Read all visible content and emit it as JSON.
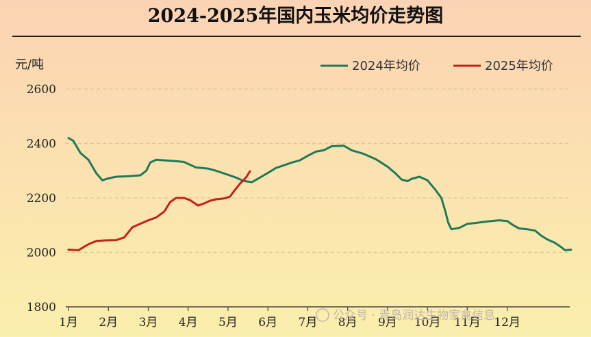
{
  "chart_data": {
    "type": "line",
    "title": "2024-2025年国内玉米均价走势图",
    "ylabel": "元/吨",
    "xlabel": "",
    "ylim": [
      1800,
      2600
    ],
    "yticks": [
      1800,
      2000,
      2200,
      2400,
      2600
    ],
    "xlim": [
      0,
      12.5
    ],
    "month_labels": [
      "1月",
      "2月",
      "3月",
      "4月",
      "5月",
      "6月",
      "7月",
      "8月",
      "9月",
      "10月",
      "11月",
      "12月"
    ],
    "grid": "horizontal dashed",
    "legend_position": "top-right",
    "series": [
      {
        "name": "2024年均价",
        "color": "#1e7a55",
        "points": [
          [
            0.0,
            2420
          ],
          [
            0.12,
            2410
          ],
          [
            0.3,
            2365
          ],
          [
            0.5,
            2340
          ],
          [
            0.7,
            2290
          ],
          [
            0.85,
            2265
          ],
          [
            1.0,
            2272
          ],
          [
            1.2,
            2278
          ],
          [
            1.5,
            2280
          ],
          [
            1.8,
            2283
          ],
          [
            1.95,
            2300
          ],
          [
            2.05,
            2330
          ],
          [
            2.2,
            2340
          ],
          [
            2.5,
            2337
          ],
          [
            2.7,
            2335
          ],
          [
            2.9,
            2332
          ],
          [
            3.0,
            2325
          ],
          [
            3.2,
            2312
          ],
          [
            3.5,
            2308
          ],
          [
            3.7,
            2300
          ],
          [
            4.0,
            2285
          ],
          [
            4.2,
            2275
          ],
          [
            4.4,
            2262
          ],
          [
            4.6,
            2258
          ],
          [
            4.8,
            2275
          ],
          [
            5.0,
            2292
          ],
          [
            5.2,
            2310
          ],
          [
            5.4,
            2320
          ],
          [
            5.6,
            2330
          ],
          [
            5.8,
            2338
          ],
          [
            6.0,
            2355
          ],
          [
            6.2,
            2370
          ],
          [
            6.4,
            2375
          ],
          [
            6.6,
            2390
          ],
          [
            6.9,
            2392
          ],
          [
            7.1,
            2375
          ],
          [
            7.4,
            2362
          ],
          [
            7.7,
            2343
          ],
          [
            8.0,
            2315
          ],
          [
            8.2,
            2290
          ],
          [
            8.35,
            2268
          ],
          [
            8.5,
            2262
          ],
          [
            8.6,
            2270
          ],
          [
            8.8,
            2278
          ],
          [
            9.0,
            2265
          ],
          [
            9.2,
            2230
          ],
          [
            9.35,
            2200
          ],
          [
            9.45,
            2150
          ],
          [
            9.52,
            2110
          ],
          [
            9.6,
            2085
          ],
          [
            9.8,
            2090
          ],
          [
            10.0,
            2105
          ],
          [
            10.2,
            2108
          ],
          [
            10.4,
            2112
          ],
          [
            10.6,
            2115
          ],
          [
            10.8,
            2118
          ],
          [
            11.0,
            2115
          ],
          [
            11.15,
            2100
          ],
          [
            11.3,
            2088
          ],
          [
            11.5,
            2085
          ],
          [
            11.7,
            2080
          ],
          [
            11.85,
            2062
          ],
          [
            12.0,
            2048
          ],
          [
            12.2,
            2035
          ],
          [
            12.35,
            2020
          ],
          [
            12.45,
            2008
          ],
          [
            12.6,
            2010
          ]
        ]
      },
      {
        "name": "2025年均价",
        "color": "#c4201c",
        "points": [
          [
            0.0,
            2010
          ],
          [
            0.25,
            2008
          ],
          [
            0.5,
            2030
          ],
          [
            0.7,
            2042
          ],
          [
            0.9,
            2044
          ],
          [
            1.2,
            2045
          ],
          [
            1.4,
            2055
          ],
          [
            1.6,
            2092
          ],
          [
            1.8,
            2105
          ],
          [
            2.0,
            2118
          ],
          [
            2.2,
            2128
          ],
          [
            2.4,
            2150
          ],
          [
            2.55,
            2185
          ],
          [
            2.7,
            2200
          ],
          [
            2.9,
            2200
          ],
          [
            3.05,
            2192
          ],
          [
            3.25,
            2172
          ],
          [
            3.4,
            2180
          ],
          [
            3.55,
            2190
          ],
          [
            3.7,
            2195
          ],
          [
            3.9,
            2198
          ],
          [
            4.05,
            2205
          ],
          [
            4.15,
            2225
          ],
          [
            4.3,
            2252
          ],
          [
            4.45,
            2275
          ],
          [
            4.55,
            2298
          ]
        ]
      }
    ],
    "watermark": "公众号 · 青岛润达生物家禽信息"
  }
}
